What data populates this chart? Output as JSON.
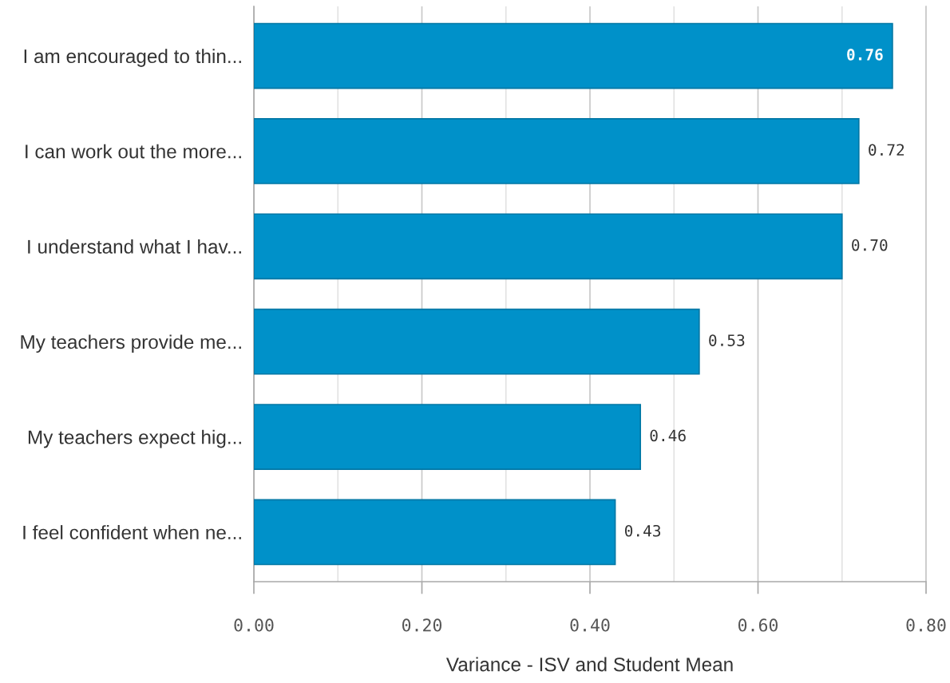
{
  "chart_data": {
    "type": "bar",
    "orientation": "horizontal",
    "categories": [
      "I am encouraged to thin...",
      "I can work out the more...",
      "I understand what I hav...",
      "My teachers provide me...",
      "My teachers expect hig...",
      "I feel confident when ne..."
    ],
    "values": [
      0.76,
      0.72,
      0.7,
      0.53,
      0.46,
      0.43
    ],
    "value_labels": [
      "0.76",
      "0.72",
      "0.70",
      "0.53",
      "0.46",
      "0.43"
    ],
    "color": "#0091c9",
    "xlabel": "Variance - ISV and Student Mean",
    "xlim": [
      0,
      0.8
    ],
    "xticks": [
      {
        "value": 0,
        "label": "0.00"
      },
      {
        "value": 0.1,
        "label": null
      },
      {
        "value": 0.2,
        "label": "0.20"
      },
      {
        "value": 0.3,
        "label": null
      },
      {
        "value": 0.4,
        "label": "0.40"
      },
      {
        "value": 0.5,
        "label": null
      },
      {
        "value": 0.6,
        "label": "0.60"
      },
      {
        "value": 0.7,
        "label": null
      },
      {
        "value": 0.8,
        "label": "0.80"
      }
    ],
    "grid": "x"
  }
}
